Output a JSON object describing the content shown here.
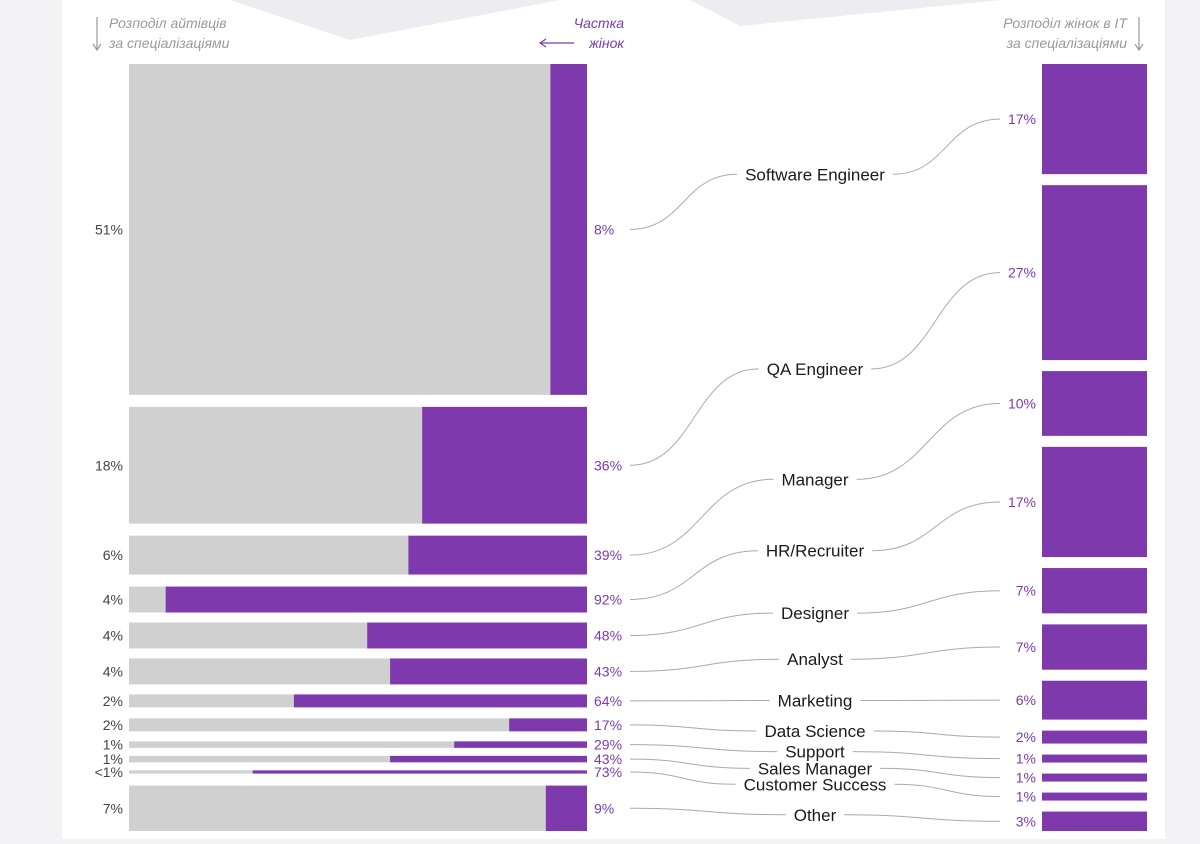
{
  "header": {
    "left_note": [
      "Розподіл айтівців",
      "за спеціалізаціями"
    ],
    "share_note": [
      "Частка",
      "жінок"
    ],
    "right_note": [
      "Розподіл жінок в IT",
      "за спеціалізаціями"
    ]
  },
  "colors": {
    "grey": "#d0d0d0",
    "purple": "#7e3aad",
    "connector": "#aaaaaa",
    "background": "#f3f3f5",
    "panel": "#ffffff"
  },
  "chart_data": {
    "type": "bar",
    "orientation": "horizontal",
    "categories": [
      "Software Engineer",
      "QA Engineer",
      "Manager",
      "HR/Recruiter",
      "Designer",
      "Analyst",
      "Marketing",
      "Data Science",
      "Support",
      "Sales Manager",
      "Customer Success",
      "Other"
    ],
    "series": [
      {
        "values": [
          51,
          18,
          6,
          4,
          4,
          4,
          2,
          2,
          1,
          1,
          0.5,
          7
        ],
        "labels": [
          "51%",
          "18%",
          "6%",
          "4%",
          "4%",
          "4%",
          "2%",
          "2%",
          "1%",
          "1%",
          "<1%",
          "7%"
        ]
      },
      {
        "values": [
          8,
          36,
          39,
          92,
          48,
          43,
          64,
          17,
          29,
          43,
          73,
          9
        ],
        "labels": [
          "8%",
          "36%",
          "39%",
          "92%",
          "48%",
          "43%",
          "64%",
          "17%",
          "29%",
          "43%",
          "73%",
          "9%"
        ]
      },
      {
        "values": [
          17,
          27,
          10,
          17,
          7,
          7,
          6,
          2,
          1,
          1,
          1,
          3
        ],
        "labels": [
          "17%",
          "27%",
          "10%",
          "17%",
          "7%",
          "7%",
          "6%",
          "2%",
          "1%",
          "1%",
          "1%",
          "3%"
        ]
      }
    ]
  }
}
